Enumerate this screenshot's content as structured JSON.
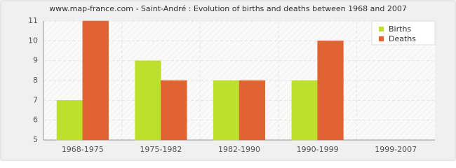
{
  "chart_data": {
    "type": "bar",
    "title": "www.map-france.com - Saint-André : Evolution of births and deaths between 1968 and 2007",
    "categories": [
      "1968-1975",
      "1975-1982",
      "1982-1990",
      "1990-1999",
      "1999-2007"
    ],
    "series": [
      {
        "name": "Births",
        "color": "#bde02c",
        "values": [
          7,
          9,
          8,
          8,
          5
        ]
      },
      {
        "name": "Deaths",
        "color": "#e06431",
        "values": [
          11,
          8,
          8,
          10,
          5
        ]
      }
    ],
    "ylim": [
      5,
      11
    ],
    "yticks": [
      5,
      6,
      7,
      8,
      9,
      10,
      11
    ],
    "grid": true,
    "legend": "top-right"
  }
}
